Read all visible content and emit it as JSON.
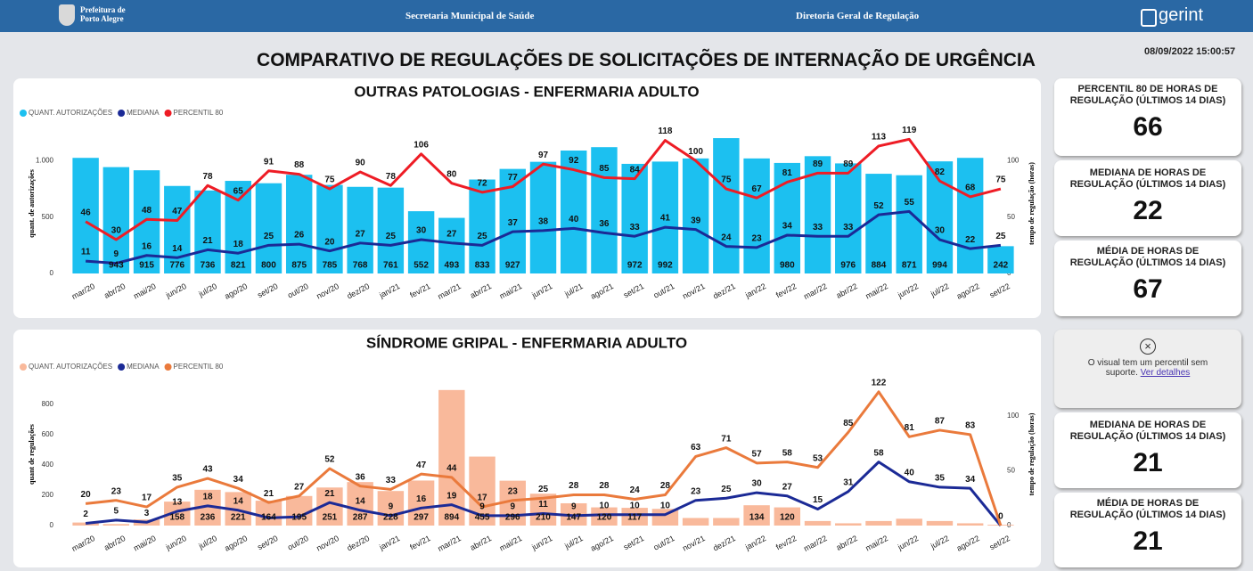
{
  "header": {
    "logo": [
      "Prefeitura de",
      "Porto Alegre"
    ],
    "left": "Secretaria Municipal de Saúde",
    "center": "Diretoria Geral de Regulação",
    "brand": "gerint"
  },
  "timestamp": "08/09/2022 15:00:57",
  "title": "COMPARATIVO DE REGULAÇÕES DE SOLICITAÇÕES DE INTERNAÇÃO DE URGÊNCIA",
  "chart_data": [
    {
      "type": "combo",
      "title": "OUTRAS PATOLOGIAS - ENFERMARIA ADULTO",
      "y_label": "quant. de autorizações",
      "y2_label": "tempo de regulação (horas)",
      "categories": [
        "mar/20",
        "abr/20",
        "mai/20",
        "jun/20",
        "jul/20",
        "ago/20",
        "set/20",
        "out/20",
        "nov/20",
        "dez/20",
        "jan/21",
        "fev/21",
        "mar/21",
        "abr/21",
        "mai/21",
        "jun/21",
        "jul/21",
        "ago/21",
        "set/21",
        "out/21",
        "nov/21",
        "dez/21",
        "jan/22",
        "fev/22",
        "mar/22",
        "abr/22",
        "mai/22",
        "jun/22",
        "jul/22",
        "ago/22",
        "set/22"
      ],
      "ylim": [
        0,
        1240
      ],
      "yticks": [
        0,
        500,
        {
          "value": 1000,
          "label": "1.000"
        }
      ],
      "y2lim": [
        0,
        124
      ],
      "y2ticks": [
        0,
        50,
        100
      ],
      "series": [
        {
          "name": "QUANT. AUTORIZAÇÕES",
          "kind": "bar",
          "color": "#1cc0f0",
          "values": [
            1025,
            943,
            915,
            776,
            736,
            821,
            800,
            875,
            785,
            768,
            761,
            552,
            493,
            833,
            927,
            990,
            1090,
            1120,
            972,
            992,
            1020,
            1200,
            1020,
            980,
            1040,
            976,
            884,
            871,
            994,
            1025,
            242
          ],
          "value_labels": [
            null,
            "943",
            "915",
            "776",
            "736",
            "821",
            "800",
            "875",
            "785",
            "768",
            "761",
            "552",
            "493",
            "833",
            "927",
            null,
            null,
            null,
            "972",
            "992",
            null,
            null,
            null,
            "980",
            null,
            "976",
            "884",
            "871",
            "994",
            null,
            "242"
          ]
        },
        {
          "name": "MEDIANA",
          "kind": "line",
          "axis": "y2",
          "color": "#1b2a96",
          "values": [
            11,
            9,
            16,
            14,
            21,
            18,
            25,
            26,
            20,
            27,
            25,
            30,
            27,
            25,
            37,
            38,
            40,
            36,
            33,
            41,
            39,
            24,
            23,
            34,
            33,
            33,
            52,
            55,
            30,
            22,
            25
          ]
        },
        {
          "name": "PERCENTIL 80",
          "kind": "line",
          "axis": "y2",
          "color": "#ee1c25",
          "values": [
            46,
            30,
            48,
            47,
            78,
            65,
            91,
            88,
            75,
            90,
            78,
            106,
            80,
            72,
            77,
            97,
            92,
            85,
            84,
            118,
            100,
            75,
            67,
            81,
            89,
            89,
            113,
            119,
            82,
            68,
            75
          ]
        }
      ]
    },
    {
      "type": "combo",
      "title": "SÍNDROME GRIPAL - ENFERMARIA ADULTO",
      "y_label": "quant de regulações",
      "y2_label": "tempo de regulação (horas)",
      "categories": [
        "mar/20",
        "abr/20",
        "mai/20",
        "jun/20",
        "jul/20",
        "ago/20",
        "set/20",
        "out/20",
        "nov/20",
        "dez/20",
        "jan/21",
        "fev/21",
        "mar/21",
        "abr/21",
        "mai/21",
        "jun/21",
        "jul/21",
        "ago/21",
        "set/21",
        "out/21",
        "nov/21",
        "dez/21",
        "jan/22",
        "fev/22",
        "mar/22",
        "abr/22",
        "mai/22",
        "jun/22",
        "jul/22",
        "ago/22",
        "set/22"
      ],
      "ylim": [
        0,
        940
      ],
      "yticks": [
        0,
        200,
        400,
        600,
        800
      ],
      "y2lim": [
        0,
        130
      ],
      "y2ticks": [
        0,
        50,
        100
      ],
      "series": [
        {
          "name": "QUANT. AUTORIZAÇÕES",
          "kind": "bar",
          "color": "#f9b99b",
          "values": [
            20,
            10,
            40,
            158,
            236,
            221,
            164,
            195,
            251,
            287,
            228,
            297,
            894,
            455,
            296,
            210,
            147,
            120,
            117,
            110,
            50,
            50,
            134,
            120,
            30,
            15,
            30,
            45,
            30,
            15,
            5
          ],
          "value_labels": [
            null,
            null,
            null,
            "158",
            "236",
            "221",
            "164",
            "195",
            "251",
            "287",
            "228",
            "297",
            "894",
            "455",
            "296",
            "210",
            "147",
            "120",
            "117",
            null,
            null,
            null,
            "134",
            "120",
            null,
            null,
            null,
            null,
            null,
            null,
            null
          ]
        },
        {
          "name": "MEDIANA",
          "kind": "line",
          "axis": "y2",
          "color": "#1b2a96",
          "values": [
            2,
            5,
            3,
            13,
            18,
            14,
            7,
            8,
            21,
            14,
            9,
            16,
            19,
            9,
            9,
            11,
            9,
            10,
            10,
            10,
            23,
            25,
            30,
            27,
            15,
            31,
            58,
            40,
            35,
            34,
            0
          ],
          "value_labels": [
            "2",
            "5",
            "3",
            "13",
            "18",
            "14",
            null,
            null,
            "21",
            "14",
            "9",
            "16",
            "19",
            "9",
            "9",
            "11",
            "9",
            "10",
            "10",
            "10",
            "23",
            "25",
            "30",
            "27",
            "15",
            "31",
            "58",
            "40",
            "35",
            "34",
            "0"
          ]
        },
        {
          "name": "PERCENTIL 80",
          "kind": "line",
          "axis": "y2",
          "color": "#ea7a3c",
          "values": [
            20,
            23,
            17,
            35,
            43,
            34,
            21,
            27,
            52,
            36,
            33,
            47,
            44,
            17,
            23,
            25,
            28,
            28,
            24,
            28,
            63,
            71,
            57,
            58,
            53,
            85,
            122,
            81,
            87,
            83,
            0
          ],
          "value_labels": [
            "20",
            "23",
            "17",
            "35",
            "43",
            "34",
            "21",
            "27",
            "52",
            "36",
            "33",
            "47",
            "44",
            "17",
            "23",
            "25",
            "28",
            "28",
            "24",
            "28",
            "63",
            "71",
            "57",
            "58",
            "53",
            "85",
            "122",
            "81",
            "87",
            "83",
            null
          ]
        }
      ]
    }
  ],
  "cards": [
    {
      "title": "PERCENTIL 80 DE HORAS DE REGULAÇÃO (ÚLTIMOS 14 DIAS)",
      "value": 66
    },
    {
      "title": "MEDIANA DE HORAS DE REGULAÇÃO (ÚLTIMOS 14 DIAS)",
      "value": 22
    },
    {
      "title": "MÉDIA DE HORAS DE REGULAÇÃO (ÚLTIMOS 14 DIAS)",
      "value": 67
    },
    {
      "message": "O visual tem um percentil sem suporte.",
      "link": "Ver detalhes"
    },
    {
      "title": "MEDIANA DE HORAS DE REGULAÇÃO (ÚLTIMOS 14 DIAS)",
      "value": 21
    },
    {
      "title": "MÉDIA DE HORAS DE REGULAÇÃO (ÚLTIMOS 14 DIAS)",
      "value": 21
    }
  ]
}
